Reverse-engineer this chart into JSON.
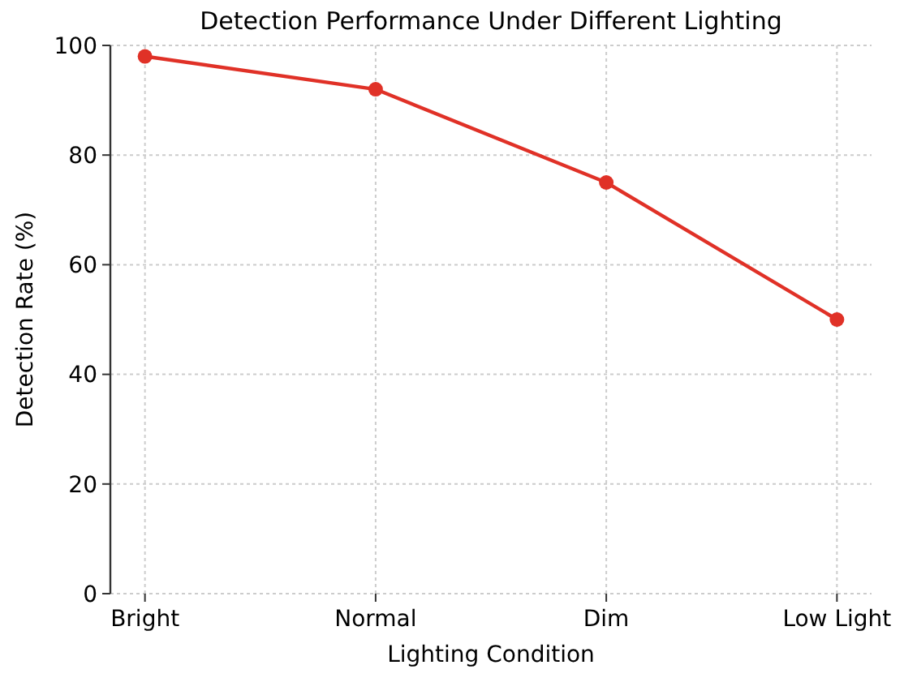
{
  "chart_data": {
    "type": "line",
    "title": "Detection Performance Under Different Lighting",
    "xlabel": "Lighting Condition",
    "ylabel": "Detection Rate (%)",
    "categories": [
      "Bright",
      "Normal",
      "Dim",
      "Low Light"
    ],
    "series": [
      {
        "color": "#e03127",
        "values": [
          98,
          92,
          75,
          50
        ]
      }
    ],
    "ylim": [
      0,
      100
    ],
    "yticks": [
      0,
      20,
      40,
      60,
      80,
      100
    ],
    "grid": true,
    "marker": "circle",
    "line_style": "solid"
  }
}
